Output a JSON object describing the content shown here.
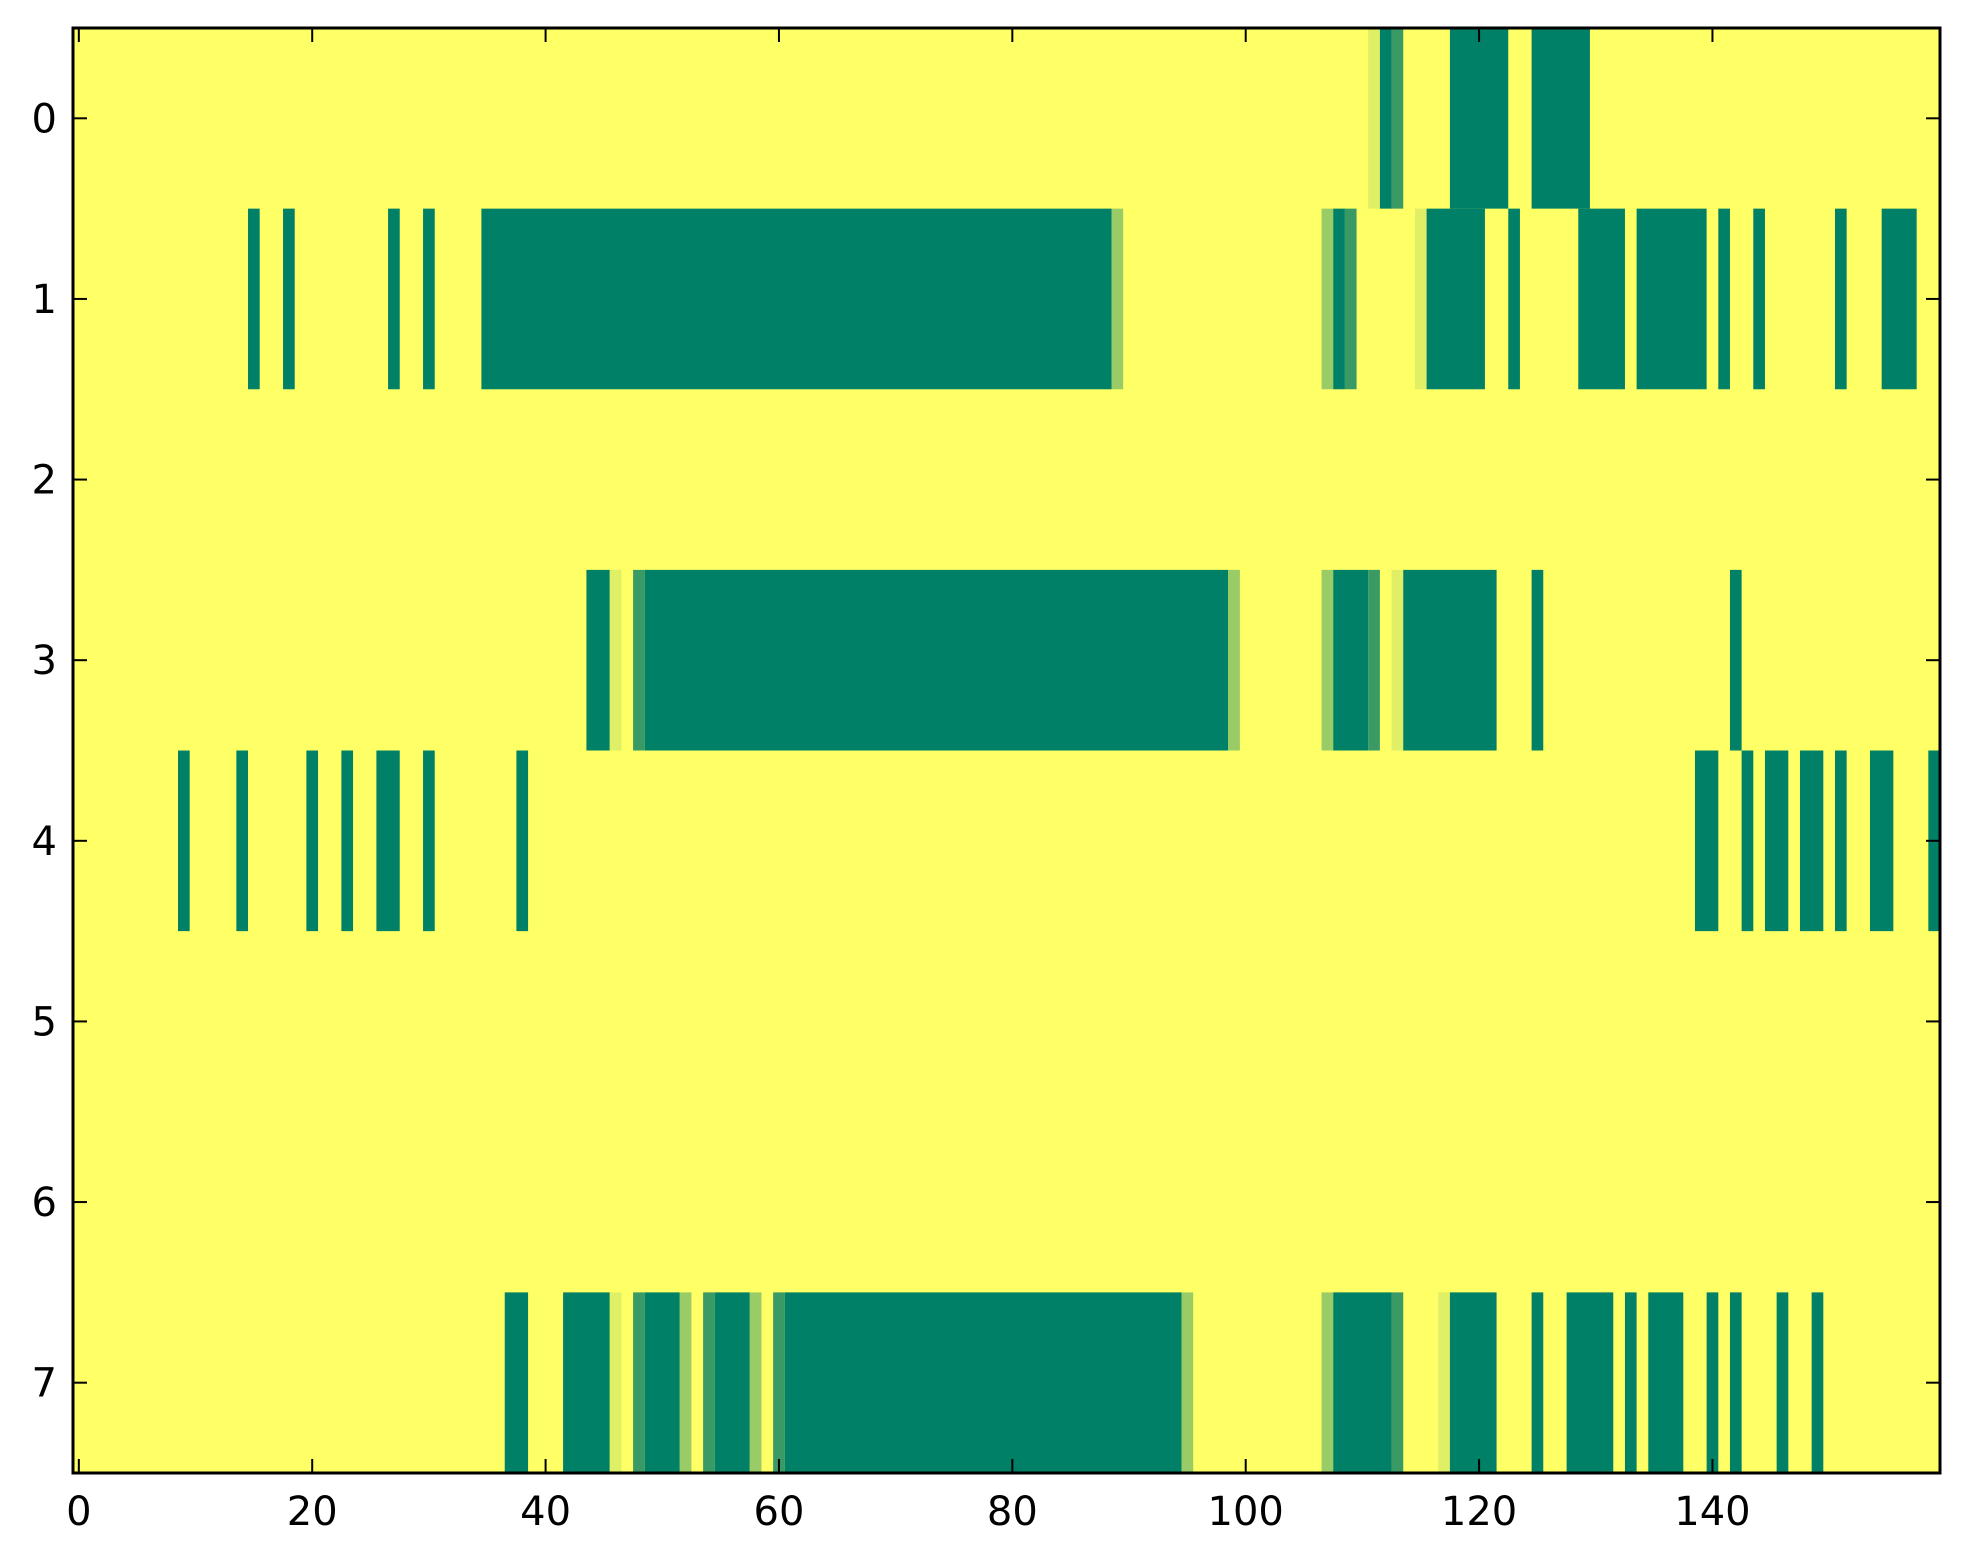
{
  "chart_data": {
    "type": "heatmap",
    "colormap": "summer_r",
    "colors": {
      "background": "#ffff66",
      "strong": "#008066",
      "medium": "#3a9a66",
      "light": "#99cc66",
      "faint": "#dfef66"
    },
    "xlim": [
      -0.5,
      159.5
    ],
    "ylim": [
      7.5,
      -0.5
    ],
    "x_ticks": [
      0,
      20,
      40,
      60,
      80,
      100,
      120,
      140
    ],
    "x_tick_labels": [
      "0",
      "20",
      "40",
      "60",
      "80",
      "100",
      "120",
      "140"
    ],
    "y_ticks": [
      0,
      1,
      2,
      3,
      4,
      5,
      6,
      7
    ],
    "y_tick_labels": [
      "0",
      "1",
      "2",
      "3",
      "4",
      "5",
      "6",
      "7"
    ],
    "grid": false,
    "rows": [
      {
        "row": 0,
        "segments": [
          {
            "start": 111,
            "end": 111,
            "level": "faint"
          },
          {
            "start": 112,
            "end": 112,
            "level": "strong"
          },
          {
            "start": 113,
            "end": 113,
            "level": "medium"
          },
          {
            "start": 118,
            "end": 122,
            "level": "strong"
          },
          {
            "start": 125,
            "end": 129,
            "level": "strong"
          }
        ]
      },
      {
        "row": 1,
        "segments": [
          {
            "start": 15,
            "end": 15,
            "level": "strong"
          },
          {
            "start": 18,
            "end": 18,
            "level": "strong"
          },
          {
            "start": 27,
            "end": 27,
            "level": "strong"
          },
          {
            "start": 30,
            "end": 30,
            "level": "strong"
          },
          {
            "start": 35,
            "end": 88,
            "level": "strong"
          },
          {
            "start": 89,
            "end": 89,
            "level": "light"
          },
          {
            "start": 107,
            "end": 107,
            "level": "light"
          },
          {
            "start": 108,
            "end": 108,
            "level": "strong"
          },
          {
            "start": 109,
            "end": 109,
            "level": "medium"
          },
          {
            "start": 115,
            "end": 115,
            "level": "faint"
          },
          {
            "start": 116,
            "end": 120,
            "level": "strong"
          },
          {
            "start": 123,
            "end": 123,
            "level": "strong"
          },
          {
            "start": 129,
            "end": 132,
            "level": "strong"
          },
          {
            "start": 134,
            "end": 139,
            "level": "strong"
          },
          {
            "start": 141,
            "end": 141,
            "level": "strong"
          },
          {
            "start": 144,
            "end": 144,
            "level": "strong"
          },
          {
            "start": 151,
            "end": 151,
            "level": "strong"
          },
          {
            "start": 155,
            "end": 157,
            "level": "strong"
          }
        ]
      },
      {
        "row": 2,
        "segments": []
      },
      {
        "row": 3,
        "segments": [
          {
            "start": 44,
            "end": 45,
            "level": "strong"
          },
          {
            "start": 46,
            "end": 46,
            "level": "faint"
          },
          {
            "start": 48,
            "end": 48,
            "level": "medium"
          },
          {
            "start": 49,
            "end": 98,
            "level": "strong"
          },
          {
            "start": 99,
            "end": 99,
            "level": "light"
          },
          {
            "start": 107,
            "end": 107,
            "level": "light"
          },
          {
            "start": 108,
            "end": 110,
            "level": "strong"
          },
          {
            "start": 111,
            "end": 111,
            "level": "medium"
          },
          {
            "start": 113,
            "end": 113,
            "level": "faint"
          },
          {
            "start": 114,
            "end": 121,
            "level": "strong"
          },
          {
            "start": 125,
            "end": 125,
            "level": "strong"
          },
          {
            "start": 142,
            "end": 142,
            "level": "strong"
          }
        ]
      },
      {
        "row": 4,
        "segments": [
          {
            "start": 9,
            "end": 9,
            "level": "strong"
          },
          {
            "start": 14,
            "end": 14,
            "level": "strong"
          },
          {
            "start": 20,
            "end": 20,
            "level": "strong"
          },
          {
            "start": 23,
            "end": 23,
            "level": "strong"
          },
          {
            "start": 26,
            "end": 27,
            "level": "strong"
          },
          {
            "start": 30,
            "end": 30,
            "level": "strong"
          },
          {
            "start": 38,
            "end": 38,
            "level": "strong"
          },
          {
            "start": 139,
            "end": 140,
            "level": "strong"
          },
          {
            "start": 143,
            "end": 143,
            "level": "strong"
          },
          {
            "start": 145,
            "end": 146,
            "level": "strong"
          },
          {
            "start": 148,
            "end": 149,
            "level": "strong"
          },
          {
            "start": 151,
            "end": 151,
            "level": "strong"
          },
          {
            "start": 154,
            "end": 155,
            "level": "strong"
          },
          {
            "start": 159,
            "end": 159,
            "level": "strong"
          }
        ]
      },
      {
        "row": 5,
        "segments": []
      },
      {
        "row": 6,
        "segments": []
      },
      {
        "row": 7,
        "segments": [
          {
            "start": 37,
            "end": 38,
            "level": "strong"
          },
          {
            "start": 42,
            "end": 45,
            "level": "strong"
          },
          {
            "start": 46,
            "end": 46,
            "level": "faint"
          },
          {
            "start": 48,
            "end": 48,
            "level": "medium"
          },
          {
            "start": 49,
            "end": 51,
            "level": "strong"
          },
          {
            "start": 52,
            "end": 52,
            "level": "light"
          },
          {
            "start": 54,
            "end": 54,
            "level": "medium"
          },
          {
            "start": 55,
            "end": 57,
            "level": "strong"
          },
          {
            "start": 58,
            "end": 58,
            "level": "light"
          },
          {
            "start": 60,
            "end": 60,
            "level": "medium"
          },
          {
            "start": 61,
            "end": 94,
            "level": "strong"
          },
          {
            "start": 95,
            "end": 95,
            "level": "light"
          },
          {
            "start": 107,
            "end": 107,
            "level": "light"
          },
          {
            "start": 108,
            "end": 112,
            "level": "strong"
          },
          {
            "start": 113,
            "end": 113,
            "level": "medium"
          },
          {
            "start": 117,
            "end": 117,
            "level": "faint"
          },
          {
            "start": 118,
            "end": 121,
            "level": "strong"
          },
          {
            "start": 125,
            "end": 125,
            "level": "strong"
          },
          {
            "start": 128,
            "end": 131,
            "level": "strong"
          },
          {
            "start": 133,
            "end": 133,
            "level": "strong"
          },
          {
            "start": 135,
            "end": 137,
            "level": "strong"
          },
          {
            "start": 140,
            "end": 140,
            "level": "strong"
          },
          {
            "start": 142,
            "end": 142,
            "level": "strong"
          },
          {
            "start": 146,
            "end": 146,
            "level": "strong"
          },
          {
            "start": 149,
            "end": 149,
            "level": "strong"
          }
        ]
      }
    ]
  }
}
